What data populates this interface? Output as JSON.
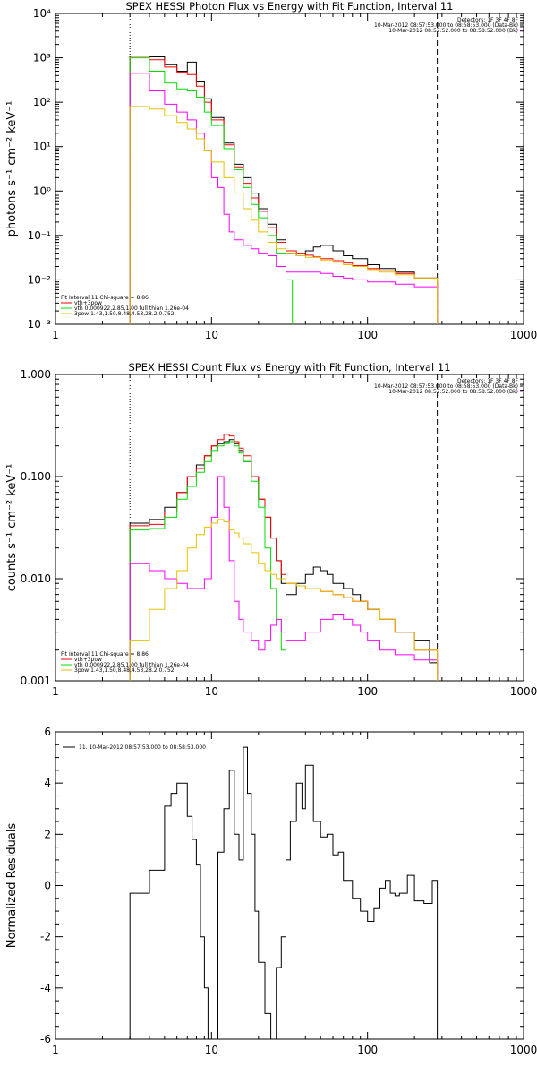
{
  "chart_data": [
    {
      "type": "line",
      "title": "SPEX HESSI Photon Flux vs Energy with Fit Function, Interval 11",
      "ylabel": "photons s⁻¹ cm⁻² keV⁻¹",
      "xscale": "log",
      "yscale": "log",
      "xlim": [
        1,
        1000
      ],
      "ylim": [
        0.001,
        10000
      ],
      "xticks": [
        "1",
        "10",
        "100",
        "1000"
      ],
      "yticks": [
        "10⁻³",
        "10⁻²",
        "10⁻¹",
        "10⁰",
        "10¹",
        "10²",
        "10³",
        "10⁴"
      ],
      "vlines": [
        {
          "x": 3,
          "style": "dotted"
        },
        {
          "x": 280,
          "style": "dashed"
        }
      ],
      "info_right": [
        "Detectors: 1F 3F 4F 8F",
        "10-Mar-2012 08:57:53.000 to 08:58:53.000 (Data-Bk)",
        "10-Mar-2012 08:57:52.000 to 08:58:52.000 (Bk)"
      ],
      "info_right_colors": [
        "#000000",
        "#000000",
        "#ff00ff"
      ],
      "fit_info": [
        "Fit Interval 11   Chi-square = 8.86",
        "vth+3pow",
        "vth 0.000922,2.85,1.00  full thian 1.26e-04",
        "3pow 1.43,1.50,8.48,4.53,28.2,0.752"
      ],
      "fit_colors": [
        "#000000",
        "#ff0000",
        "#00dd00",
        "#e6c000"
      ],
      "series": [
        {
          "color": "#000000",
          "x": [
            3,
            4,
            5,
            6,
            7,
            8,
            9,
            10,
            12,
            14,
            16,
            18,
            20,
            23,
            26,
            30,
            35,
            40,
            45,
            50,
            60,
            70,
            80,
            100,
            120,
            150,
            200,
            280
          ],
          "values": [
            1100,
            1050,
            700,
            500,
            800,
            300,
            120,
            45,
            12,
            4,
            2,
            0.9,
            0.4,
            0.18,
            0.08,
            0.04,
            0.035,
            0.045,
            0.055,
            0.06,
            0.045,
            0.035,
            0.03,
            0.022,
            0.018,
            0.015,
            0.011,
            0.009
          ]
        },
        {
          "color": "#ff0000",
          "x": [
            3,
            4,
            5,
            6,
            7,
            8,
            9,
            10,
            12,
            14,
            16,
            18,
            20,
            23,
            26,
            30,
            35,
            40,
            45,
            50,
            60,
            70,
            80,
            100,
            120,
            150,
            200,
            280
          ],
          "values": [
            1080,
            900,
            620,
            480,
            420,
            230,
            100,
            40,
            11,
            3.5,
            1.5,
            0.7,
            0.35,
            0.15,
            0.07,
            0.045,
            0.04,
            0.036,
            0.033,
            0.03,
            0.027,
            0.024,
            0.021,
            0.018,
            0.016,
            0.014,
            0.011,
            0.009
          ]
        },
        {
          "color": "#00dd00",
          "x": [
            3,
            4,
            5,
            6,
            7,
            8,
            9,
            10,
            12,
            14,
            16,
            18,
            20,
            23,
            26,
            30,
            33
          ],
          "values": [
            1000,
            500,
            270,
            200,
            180,
            130,
            60,
            30,
            9,
            3,
            1.2,
            0.5,
            0.25,
            0.1,
            0.04,
            0.01,
            0.001
          ]
        },
        {
          "color": "#ff00ff",
          "x": [
            3,
            4,
            5,
            6,
            7,
            8,
            9,
            10,
            11,
            12,
            13,
            14,
            16,
            18,
            20,
            23,
            26,
            30,
            40,
            50,
            60,
            70,
            80,
            100,
            120,
            150,
            200,
            280
          ],
          "values": [
            450,
            180,
            90,
            60,
            40,
            20,
            8,
            2,
            1.2,
            0.3,
            0.12,
            0.08,
            0.06,
            0.05,
            0.04,
            0.035,
            0.02,
            0.015,
            0.015,
            0.014,
            0.012,
            0.011,
            0.01,
            0.009,
            0.009,
            0.008,
            0.007,
            0.007
          ]
        },
        {
          "color": "#e6c000",
          "x": [
            3,
            4,
            5,
            6,
            7,
            8,
            9,
            10,
            12,
            14,
            16,
            18,
            20,
            23,
            26,
            30,
            35,
            40,
            50,
            60,
            70,
            80,
            100,
            120,
            150,
            200,
            280
          ],
          "values": [
            80,
            70,
            50,
            35,
            25,
            15,
            8,
            4.5,
            2,
            0.9,
            0.4,
            0.22,
            0.12,
            0.07,
            0.05,
            0.04,
            0.035,
            0.032,
            0.028,
            0.025,
            0.022,
            0.02,
            0.017,
            0.015,
            0.013,
            0.011,
            0.009
          ]
        }
      ]
    },
    {
      "type": "line",
      "title": "SPEX HESSI Count Flux vs Energy with Fit Function, Interval 11",
      "ylabel": "counts s⁻¹ cm⁻² keV⁻¹",
      "xscale": "log",
      "yscale": "log",
      "xlim": [
        1,
        1000
      ],
      "ylim": [
        0.001,
        1.0
      ],
      "xticks": [
        "1",
        "10",
        "100",
        "1000"
      ],
      "yticks": [
        "0.001",
        "0.010",
        "0.100",
        "1.000"
      ],
      "vlines": [
        {
          "x": 3,
          "style": "dotted"
        },
        {
          "x": 280,
          "style": "dashed"
        }
      ],
      "info_right": [
        "Detectors: 1F 3F 4F 8F",
        "10-Mar-2012 08:57:53.000 to 08:58:53.000 (Data-Bk)",
        "10-Mar-2012 08:57:52.000 to 08:58:52.000 (Bk)"
      ],
      "info_right_colors": [
        "#000000",
        "#000000",
        "#ff00ff"
      ],
      "fit_info": [
        "Fit Interval 11   Chi-square = 8.86",
        "vth+3pow",
        "vth 0.000922,2.85,1.00  full thian 1.26e-04",
        "3pow 1.43,1.50,8.48,4.53,28.2,0.752"
      ],
      "fit_colors": [
        "#000000",
        "#ff0000",
        "#00dd00",
        "#e6c000"
      ],
      "series": [
        {
          "color": "#000000",
          "x": [
            3,
            4,
            5,
            6,
            7,
            8,
            9,
            10,
            11,
            12,
            13,
            14,
            15,
            16,
            18,
            20,
            22,
            24,
            26,
            28,
            30,
            35,
            40,
            45,
            50,
            55,
            60,
            70,
            80,
            90,
            100,
            120,
            150,
            200,
            250,
            280
          ],
          "values": [
            0.035,
            0.038,
            0.05,
            0.07,
            0.1,
            0.13,
            0.16,
            0.2,
            0.21,
            0.22,
            0.23,
            0.21,
            0.18,
            0.14,
            0.1,
            0.06,
            0.04,
            0.025,
            0.015,
            0.009,
            0.007,
            0.009,
            0.011,
            0.013,
            0.012,
            0.011,
            0.009,
            0.008,
            0.007,
            0.006,
            0.005,
            0.004,
            0.003,
            0.0025,
            0.0015,
            0.001
          ]
        },
        {
          "color": "#ff0000",
          "x": [
            3,
            4,
            5,
            6,
            7,
            8,
            9,
            10,
            11,
            12,
            13,
            14,
            15,
            16,
            18,
            20,
            22,
            24,
            26,
            28,
            30,
            35,
            40,
            50,
            60,
            70,
            80,
            100,
            120,
            150,
            200,
            280
          ],
          "values": [
            0.033,
            0.034,
            0.045,
            0.07,
            0.1,
            0.12,
            0.16,
            0.2,
            0.23,
            0.26,
            0.25,
            0.22,
            0.19,
            0.16,
            0.1,
            0.06,
            0.04,
            0.025,
            0.015,
            0.011,
            0.009,
            0.0085,
            0.008,
            0.0075,
            0.007,
            0.0065,
            0.006,
            0.005,
            0.004,
            0.003,
            0.002,
            0.0015
          ]
        },
        {
          "color": "#00dd00",
          "x": [
            3,
            4,
            5,
            6,
            7,
            8,
            9,
            10,
            11,
            12,
            13,
            14,
            15,
            16,
            18,
            20,
            22,
            24,
            26,
            28,
            30
          ],
          "values": [
            0.03,
            0.031,
            0.04,
            0.06,
            0.08,
            0.11,
            0.14,
            0.18,
            0.2,
            0.21,
            0.22,
            0.2,
            0.17,
            0.14,
            0.09,
            0.05,
            0.02,
            0.008,
            0.004,
            0.002,
            0.001
          ]
        },
        {
          "color": "#ff00ff",
          "x": [
            3,
            4,
            5,
            6,
            7,
            8,
            9,
            10,
            11,
            12,
            13,
            14,
            15,
            16,
            18,
            20,
            22,
            24,
            26,
            28,
            30,
            35,
            40,
            50,
            60,
            70,
            80,
            90,
            100,
            120,
            150,
            200,
            280
          ],
          "values": [
            0.014,
            0.012,
            0.01,
            0.009,
            0.008,
            0.008,
            0.01,
            0.04,
            0.1,
            0.05,
            0.015,
            0.006,
            0.004,
            0.003,
            0.0025,
            0.002,
            0.0025,
            0.0035,
            0.004,
            0.003,
            0.0025,
            0.0025,
            0.003,
            0.004,
            0.0045,
            0.004,
            0.0035,
            0.003,
            0.0025,
            0.002,
            0.0018,
            0.0016,
            0.0015
          ]
        },
        {
          "color": "#e6c000",
          "x": [
            3,
            4,
            5,
            6,
            7,
            8,
            9,
            10,
            11,
            12,
            13,
            14,
            15,
            16,
            18,
            20,
            22,
            24,
            26,
            30,
            35,
            40,
            50,
            60,
            70,
            80,
            100,
            120,
            150,
            200,
            280
          ],
          "values": [
            0.0025,
            0.005,
            0.008,
            0.012,
            0.02,
            0.027,
            0.032,
            0.035,
            0.038,
            0.036,
            0.03,
            0.028,
            0.025,
            0.022,
            0.018,
            0.014,
            0.012,
            0.011,
            0.01,
            0.009,
            0.0085,
            0.008,
            0.0075,
            0.007,
            0.0065,
            0.006,
            0.005,
            0.004,
            0.003,
            0.002,
            0.0015
          ]
        }
      ]
    },
    {
      "type": "line",
      "title": "",
      "ylabel": "Normalized Residuals",
      "xscale": "log",
      "yscale": "linear",
      "xlim": [
        1,
        1000
      ],
      "ylim": [
        -6,
        6
      ],
      "xticks": [
        "1",
        "10",
        "100",
        "1000"
      ],
      "yticks": [
        "-6",
        "-4",
        "-2",
        "0",
        "2",
        "4",
        "6"
      ],
      "legend": "11. 10-Mar-2012 08:57:53.000 to 08:58:53.000",
      "series": [
        {
          "color": "#000000",
          "x": [
            3,
            4,
            5,
            5.5,
            6,
            7,
            7.5,
            8,
            8.5,
            9,
            9.5,
            10,
            11,
            12,
            13,
            14,
            15,
            16,
            17,
            18,
            19,
            20,
            22,
            24,
            26,
            28,
            30,
            32,
            35,
            38,
            40,
            45,
            50,
            55,
            60,
            65,
            70,
            80,
            90,
            100,
            110,
            120,
            130,
            140,
            150,
            160,
            180,
            200,
            230,
            260,
            280
          ],
          "values": [
            -0.3,
            0.6,
            3.1,
            3.6,
            4.0,
            2.7,
            1.8,
            0.8,
            -2.0,
            -4.0,
            -6.0,
            -6.0,
            1.3,
            3.0,
            4.5,
            2.0,
            1.0,
            5.4,
            3.6,
            2.0,
            -1.0,
            -3.0,
            -5.0,
            -6.0,
            -3.2,
            -2.0,
            1.0,
            2.5,
            4.0,
            3.0,
            4.7,
            2.5,
            1.9,
            2.0,
            1.2,
            1.3,
            0.2,
            -0.5,
            -1.0,
            -1.4,
            -0.9,
            -0.1,
            0.2,
            -0.3,
            -0.4,
            -0.3,
            0.4,
            -0.6,
            -0.7,
            0.2,
            -0.5
          ]
        }
      ]
    }
  ]
}
